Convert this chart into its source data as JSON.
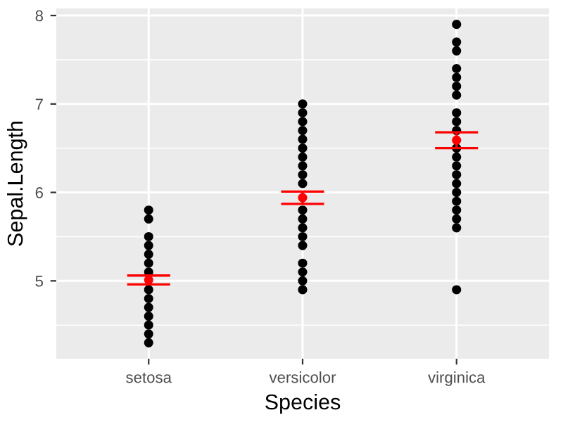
{
  "chart_data": {
    "type": "scatter",
    "xlabel": "Species",
    "ylabel": "Sepal.Length",
    "categories": [
      "setosa",
      "versicolor",
      "virginica"
    ],
    "ylim": [
      4.12,
      8.08
    ],
    "yticks": [
      5,
      6,
      7,
      8
    ],
    "grid": true,
    "legend": false,
    "marker": "circle",
    "series": [
      {
        "color": "#000000",
        "x": [
          "setosa",
          "setosa",
          "setosa",
          "setosa",
          "setosa",
          "setosa",
          "setosa",
          "setosa",
          "setosa",
          "setosa",
          "setosa",
          "setosa",
          "setosa",
          "setosa",
          "setosa",
          "versicolor",
          "versicolor",
          "versicolor",
          "versicolor",
          "versicolor",
          "versicolor",
          "versicolor",
          "versicolor",
          "versicolor",
          "versicolor",
          "versicolor",
          "versicolor",
          "versicolor",
          "versicolor",
          "versicolor",
          "versicolor",
          "versicolor",
          "versicolor",
          "versicolor",
          "versicolor",
          "versicolor",
          "virginica",
          "virginica",
          "virginica",
          "virginica",
          "virginica",
          "virginica",
          "virginica",
          "virginica",
          "virginica",
          "virginica",
          "virginica",
          "virginica",
          "virginica",
          "virginica",
          "virginica",
          "virginica",
          "virginica",
          "virginica",
          "virginica",
          "virginica",
          "virginica"
        ],
        "values": [
          4.3,
          4.4,
          4.5,
          4.6,
          4.7,
          4.8,
          4.9,
          null,
          5.1,
          5.2,
          5.3,
          5.4,
          5.5,
          5.7,
          5.8,
          4.9,
          5.0,
          5.1,
          5.2,
          5.4,
          5.5,
          5.6,
          5.7,
          5.8,
          null,
          null,
          6.1,
          6.2,
          6.3,
          6.4,
          6.5,
          6.6,
          6.7,
          6.8,
          6.9,
          7.0,
          4.9,
          5.6,
          5.7,
          5.8,
          5.9,
          6.0,
          6.1,
          6.2,
          6.3,
          6.4,
          6.5,
          6.7,
          6.8,
          6.9,
          7.1,
          7.2,
          7.3,
          7.4,
          7.6,
          7.7,
          7.9
        ]
      },
      {
        "color": "#ff0000",
        "x": [
          "setosa",
          "versicolor",
          "virginica"
        ],
        "values": [
          5.01,
          5.94,
          6.59
        ],
        "errors": [
          0.05,
          0.07,
          0.09
        ]
      }
    ]
  }
}
